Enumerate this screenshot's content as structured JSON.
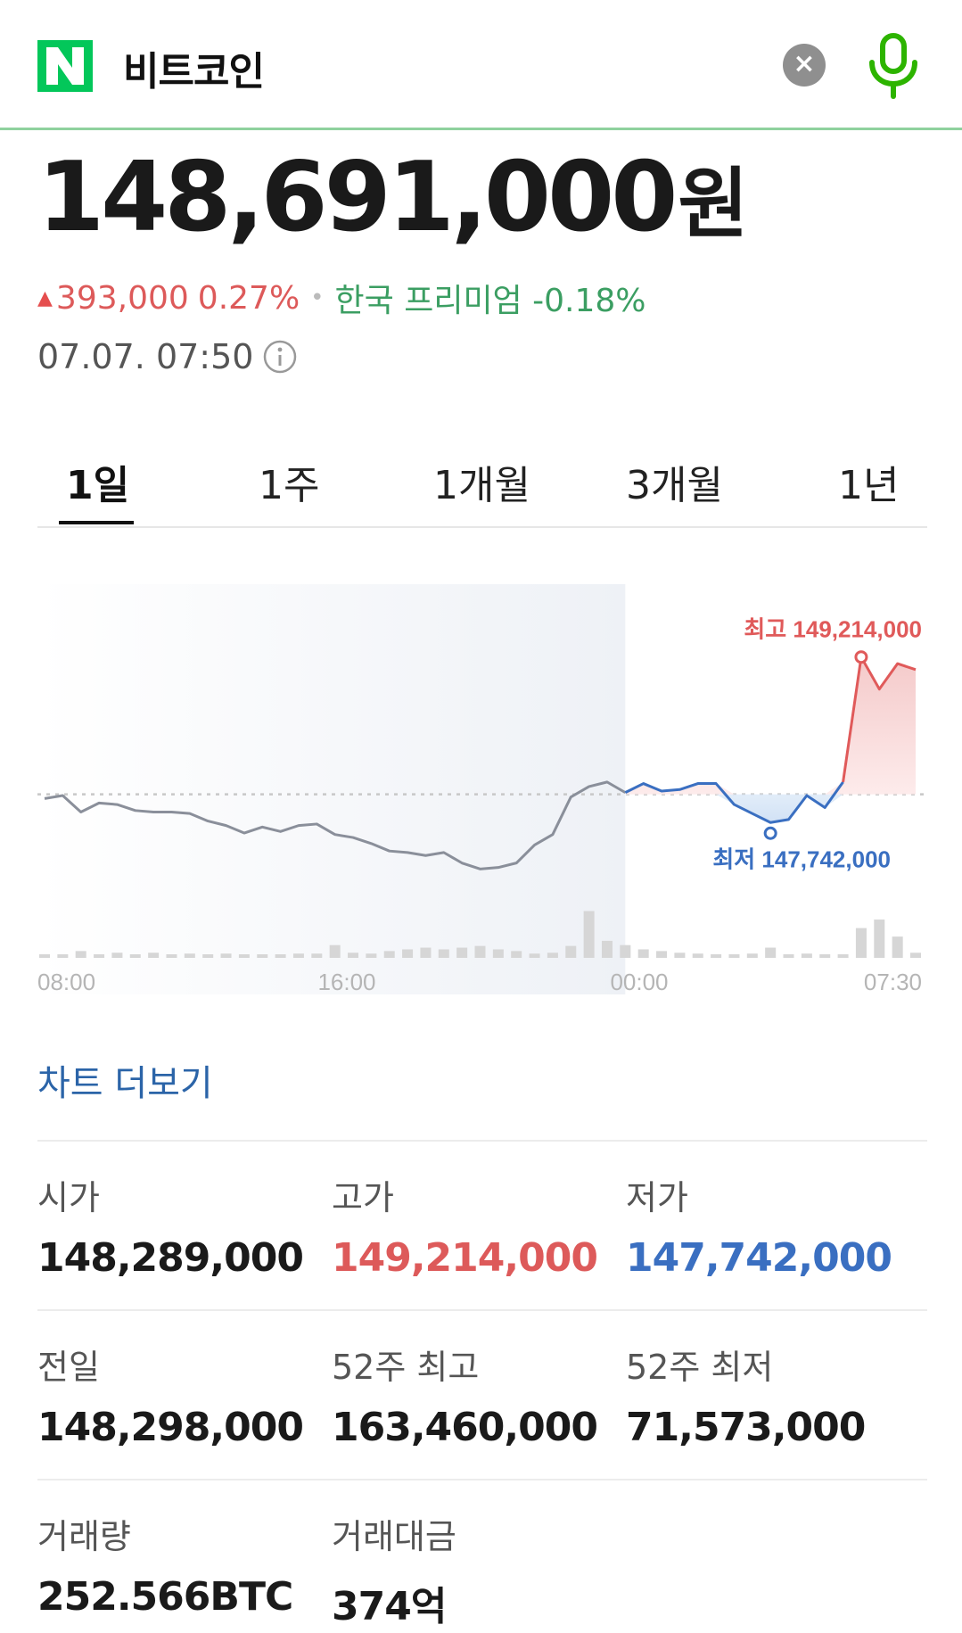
{
  "header": {
    "logo_text": "N",
    "query": "비트코인",
    "clear_label": "×",
    "colors": {
      "logo": "#03c75a",
      "mic": "#2db400",
      "divider": "#8fd19e"
    }
  },
  "summary": {
    "price": "148,691,000",
    "unit": "원",
    "change_amount": "393,000",
    "change_percent": "0.27%",
    "separator": "•",
    "premium": "한국 프리미엄 -0.18%",
    "timestamp": "07.07. 07:50"
  },
  "tabs": [
    {
      "label": "1일",
      "active": true
    },
    {
      "label": "1주",
      "active": false
    },
    {
      "label": "1개월",
      "active": false
    },
    {
      "label": "3개월",
      "active": false
    },
    {
      "label": "1년",
      "active": false
    }
  ],
  "chart_data": {
    "type": "line",
    "x_tick_labels": [
      "08:00",
      "16:00",
      "00:00",
      "07:30"
    ],
    "reference_line": 148298000,
    "high_label": "최고 149,214,000",
    "low_label": "최저 147,742,000",
    "high": 149214000,
    "low": 147742000,
    "ylim": [
      147350000,
      149700000
    ],
    "colors": {
      "past": "#8a8f9a",
      "below": "#3a6fc1",
      "above": "#e05a5a",
      "volume": "#d6d6d6"
    },
    "prices": [
      148270000,
      148290000,
      148180000,
      148240000,
      148230000,
      148190000,
      148180000,
      148180000,
      148170000,
      148120000,
      148090000,
      148040000,
      148080000,
      148050000,
      148090000,
      148100000,
      148030000,
      148010000,
      147970000,
      147920000,
      147910000,
      147890000,
      147910000,
      147840000,
      147800000,
      147810000,
      147840000,
      147960000,
      148030000,
      148280000,
      148350000,
      148380000,
      148310000,
      148370000,
      148320000,
      148330000,
      148370000,
      148370000,
      148230000,
      148170000,
      148110000,
      148130000,
      148290000,
      148210000,
      148380000,
      149214000,
      149000000,
      149170000,
      149130000
    ],
    "volumes": [
      0.04,
      0.04,
      0.08,
      0.04,
      0.06,
      0.04,
      0.06,
      0.04,
      0.05,
      0.04,
      0.05,
      0.04,
      0.04,
      0.04,
      0.05,
      0.05,
      0.15,
      0.06,
      0.05,
      0.08,
      0.1,
      0.12,
      0.1,
      0.12,
      0.14,
      0.1,
      0.08,
      0.05,
      0.06,
      0.14,
      0.55,
      0.2,
      0.15,
      0.1,
      0.08,
      0.06,
      0.05,
      0.04,
      0.04,
      0.05,
      0.12,
      0.04,
      0.05,
      0.04,
      0.04,
      0.35,
      0.45,
      0.25,
      0.06
    ]
  },
  "more_link": "차트 더보기",
  "stats": [
    [
      {
        "label": "시가",
        "value": "148,289,000",
        "tone": ""
      },
      {
        "label": "고가",
        "value": "149,214,000",
        "tone": "red"
      },
      {
        "label": "저가",
        "value": "147,742,000",
        "tone": "blue"
      }
    ],
    [
      {
        "label": "전일",
        "value": "148,298,000",
        "tone": ""
      },
      {
        "label": "52주 최고",
        "value": "163,460,000",
        "tone": ""
      },
      {
        "label": "52주 최저",
        "value": "71,573,000",
        "tone": ""
      }
    ],
    [
      {
        "label": "거래량",
        "value": "252.566BTC",
        "tone": ""
      },
      {
        "label": "거래대금",
        "value": "374억",
        "tone": ""
      }
    ]
  ]
}
